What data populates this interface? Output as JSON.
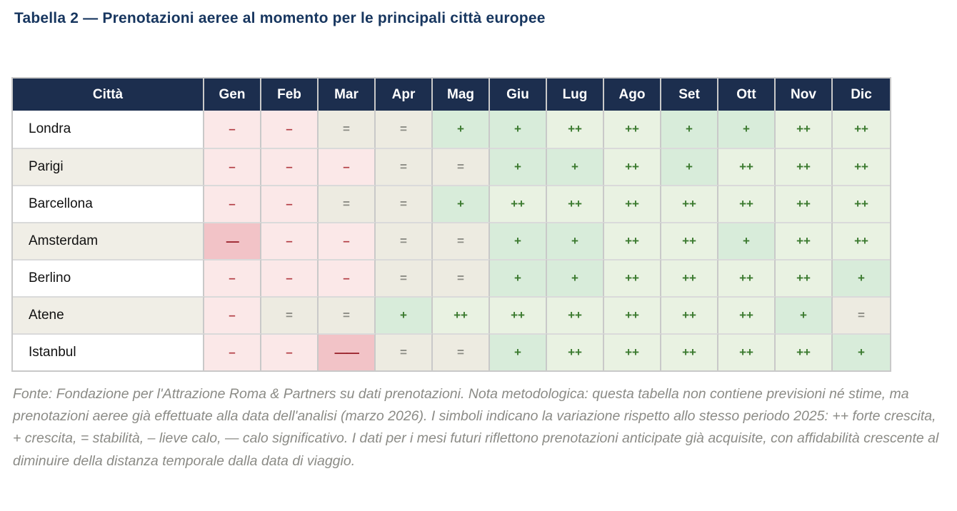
{
  "chart_data": {
    "type": "table",
    "title": "Tabella 2 — Prenotazioni aeree al momento per le principali città europee",
    "columns": [
      "Città",
      "Gen",
      "Feb",
      "Mar",
      "Apr",
      "Mag",
      "Giu",
      "Lug",
      "Ago",
      "Set",
      "Ott",
      "Nov",
      "Dic"
    ],
    "rows": [
      {
        "city": "Londra",
        "values": [
          "–",
          "–",
          "=",
          "=",
          "+",
          "+",
          "++",
          "++",
          "+",
          "+",
          "++",
          "++"
        ]
      },
      {
        "city": "Parigi",
        "values": [
          "–",
          "–",
          "–",
          "=",
          "=",
          "+",
          "+",
          "++",
          "+",
          "++",
          "++",
          "++"
        ]
      },
      {
        "city": "Barcellona",
        "values": [
          "–",
          "–",
          "=",
          "=",
          "+",
          "++",
          "++",
          "++",
          "++",
          "++",
          "++",
          "++"
        ]
      },
      {
        "city": "Amsterdam",
        "values": [
          "—",
          "–",
          "–",
          "=",
          "=",
          "+",
          "+",
          "++",
          "++",
          "+",
          "++",
          "++"
        ]
      },
      {
        "city": "Berlino",
        "values": [
          "–",
          "–",
          "–",
          "=",
          "=",
          "+",
          "+",
          "++",
          "++",
          "++",
          "++",
          "+"
        ]
      },
      {
        "city": "Atene",
        "values": [
          "–",
          "=",
          "=",
          "+",
          "++",
          "++",
          "++",
          "++",
          "++",
          "++",
          "+",
          "="
        ]
      },
      {
        "city": "Istanbul",
        "values": [
          "–",
          "–",
          "——",
          "=",
          "=",
          "+",
          "++",
          "++",
          "++",
          "++",
          "++",
          "+"
        ]
      }
    ],
    "legend": {
      "++": "forte crescita",
      "+": "crescita",
      "=": "stabilità",
      "–": "lieve calo",
      "—": "calo significativo"
    }
  },
  "footnote": "Fonte: Fondazione per l'Attrazione Roma & Partners su dati prenotazioni. Nota metodologica: questa tabella non contiene previsioni né stime, ma prenotazioni aeree già effettuate alla data dell'analisi (marzo 2026). I simboli indicano la variazione rispetto allo stesso periodo 2025: ++ forte crescita, + crescita, = stabilità, – lieve calo, — calo significativo. I dati per i mesi futuri riflettono prenotazioni anticipate già acquisite, con affidabilità crescente al diminuire della distanza temporale dalla data di viaggio.",
  "colors": {
    "header_bg": "#1c2e4e",
    "title_fg": "#17365f",
    "stripe_bg": "#f0eee6",
    "neg_bg": "#fbe8e8",
    "neg_fg": "#b23a42",
    "strongneg_bg": "#f2c3c7",
    "strongneg_fg": "#9c2730",
    "eq_bg": "#edebe1",
    "eq_fg": "#8b8b84",
    "pos_bg": "#d8ecda",
    "pos_fg": "#3b7a2f",
    "strongpos_bg": "#e9f2e2",
    "strongpos_fg": "#3b7a2f",
    "footnote_fg": "#8b8b86"
  }
}
